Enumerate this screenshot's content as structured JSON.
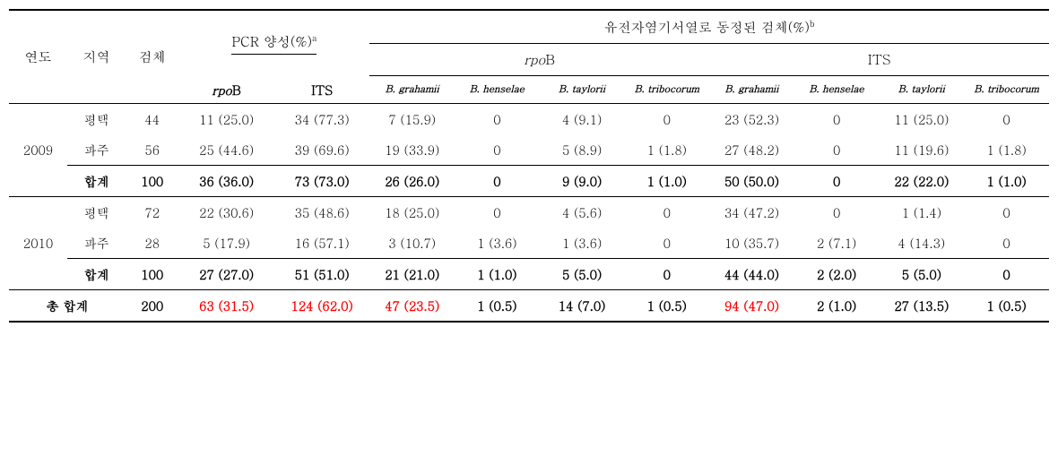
{
  "headers": {
    "year": "연도",
    "region": "지역",
    "sample": "검체",
    "pcr": "PCR 양성(%)",
    "pcr_sup": "a",
    "identified": "유전자염기서열로 동정된 검체(%)",
    "identified_sup": "b",
    "rpoB_i": "rpo",
    "rpoB_r": "B",
    "its": "ITS",
    "sp1": "B. grahamii",
    "sp2": "B. henselae",
    "sp3": "B. taylorii",
    "sp4": "B. tribocorum"
  },
  "y2009": {
    "year": "2009",
    "r1": {
      "region": "평택",
      "sample": "44",
      "pcr_r": "11 (25.0)",
      "pcr_i": "34 (77.3)",
      "r1": "7 (15.9)",
      "r2": "0",
      "r3": "4 (9.1)",
      "r4": "0",
      "i1": "23 (52.3)",
      "i2": "0",
      "i3": "11 (25.0)",
      "i4": "0"
    },
    "r2": {
      "region": "파주",
      "sample": "56",
      "pcr_r": "25 (44.6)",
      "pcr_i": "39 (69.6)",
      "r1": "19 (33.9)",
      "r2": "0",
      "r3": "5 (8.9)",
      "r4": "1 (1.8)",
      "i1": "27 (48.2)",
      "i2": "0",
      "i3": "11 (19.6)",
      "i4": "1 (1.8)"
    },
    "sub": {
      "region": "합계",
      "sample": "100",
      "pcr_r": "36 (36.0)",
      "pcr_i": "73 (73.0)",
      "r1": "26 (26.0)",
      "r2": "0",
      "r3": "9 (9.0)",
      "r4": "1 (1.0)",
      "i1": "50 (50.0)",
      "i2": "0",
      "i3": "22 (22.0)",
      "i4": "1 (1.0)"
    }
  },
  "y2010": {
    "year": "2010",
    "r1": {
      "region": "평택",
      "sample": "72",
      "pcr_r": "22 (30.6)",
      "pcr_i": "35 (48.6)",
      "r1": "18 (25.0)",
      "r2": "0",
      "r3": "4 (5.6)",
      "r4": "0",
      "i1": "34 (47.2)",
      "i2": "0",
      "i3": "1 (1.4)",
      "i4": "0"
    },
    "r2": {
      "region": "파주",
      "sample": "28",
      "pcr_r": "5 (17.9)",
      "pcr_i": "16 (57.1)",
      "r1": "3 (10.7)",
      "r2": "1 (3.6)",
      "r3": "1 (3.6)",
      "r4": "0",
      "i1": "10 (35.7)",
      "i2": "2 (7.1)",
      "i3": "4 (14.3)",
      "i4": "0"
    },
    "sub": {
      "region": "합계",
      "sample": "100",
      "pcr_r": "27 (27.0)",
      "pcr_i": "51 (51.0)",
      "r1": "21 (21.0)",
      "r2": "1 (1.0)",
      "r3": "5 (5.0)",
      "r4": "0",
      "i1": "44 (44.0)",
      "i2": "2 (2.0)",
      "i3": "5 (5.0)",
      "i4": "0"
    }
  },
  "total": {
    "label": "총 합계",
    "sample": "200",
    "pcr_r": "63 (31.5)",
    "pcr_i": "124 (62.0)",
    "r1": "47 (23.5)",
    "r2": "1 (0.5)",
    "r3": "14 (7.0)",
    "r4": "1 (0.5)",
    "i1": "94 (47.0)",
    "i2": "2 (1.0)",
    "i3": "27 (13.5)",
    "i4": "1 (0.5)"
  },
  "colors": {
    "highlight": "#ff0000",
    "text": "#000000",
    "border": "#000000",
    "bg": "#ffffff"
  }
}
